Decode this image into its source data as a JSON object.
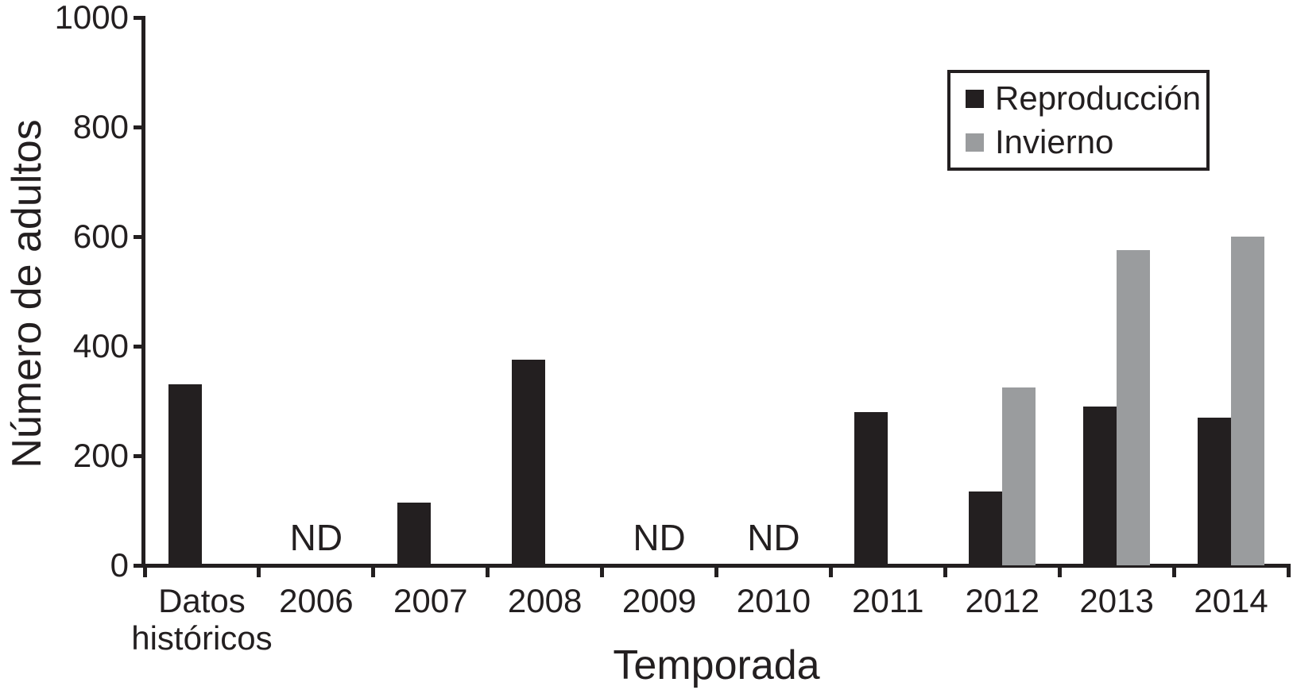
{
  "chart_data": {
    "type": "bar",
    "title": "",
    "xlabel": "Temporada",
    "ylabel": "Número de adultos",
    "ylim": [
      0,
      1000
    ],
    "yticks": [
      0,
      200,
      400,
      600,
      800,
      1000
    ],
    "grid": false,
    "legend_position": "top-right",
    "background_color": "#ffffff",
    "axis_color": "#231f20",
    "categories": [
      "Datos históricos",
      "2006",
      "2007",
      "2008",
      "2009",
      "2010",
      "2011",
      "2012",
      "2013",
      "2014"
    ],
    "series": [
      {
        "name": "Reproducción",
        "color": "#231f20",
        "values": [
          330,
          null,
          115,
          375,
          null,
          null,
          280,
          135,
          290,
          270
        ]
      },
      {
        "name": "Invierno",
        "color": "#9a9c9e",
        "values": [
          null,
          null,
          null,
          null,
          null,
          null,
          null,
          325,
          575,
          600
        ]
      }
    ],
    "no_data_label": "ND",
    "no_data_indices": [
      1,
      4,
      5
    ]
  }
}
